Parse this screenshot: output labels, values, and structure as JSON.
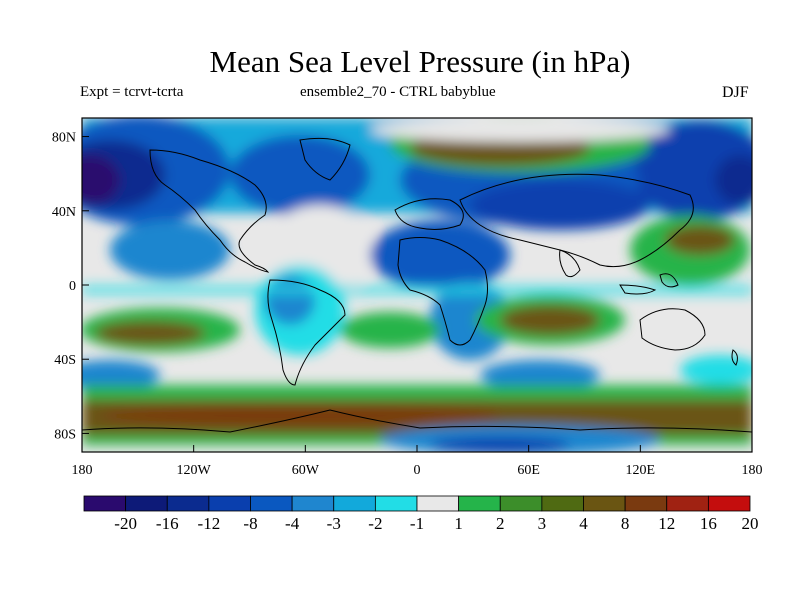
{
  "title": "Mean Sea Level Pressure (in hPa)",
  "experiment": "Expt = tcrvt-tcrta",
  "ensemble": "ensemble2_70 - CTRL babyblue",
  "season": "DJF",
  "map": {
    "lat_labels": [
      "80N",
      "40N",
      "0",
      "40S",
      "80S"
    ],
    "lat_values": [
      80,
      40,
      0,
      -40,
      -80
    ],
    "lon_labels": [
      "180",
      "120W",
      "60W",
      "0",
      "60E",
      "120E",
      "180"
    ],
    "lon_values": [
      -180,
      -120,
      -60,
      0,
      60,
      120,
      180
    ]
  },
  "colorbar": {
    "colors": [
      "#2a0a6e",
      "#0d1a78",
      "#0b2b8f",
      "#0a3fae",
      "#0a58c0",
      "#1f86cf",
      "#12a9db",
      "#22dde6",
      "#e8e8e8",
      "#25b44a",
      "#3c8e2a",
      "#4f6a12",
      "#6a5512",
      "#7a3a10",
      "#a02212",
      "#c40d0d"
    ],
    "labels": [
      "-20",
      "-16",
      "-12",
      "-8",
      "-4",
      "-3",
      "-2",
      "-1",
      "1",
      "2",
      "3",
      "4",
      "8",
      "12",
      "16",
      "20"
    ]
  }
}
